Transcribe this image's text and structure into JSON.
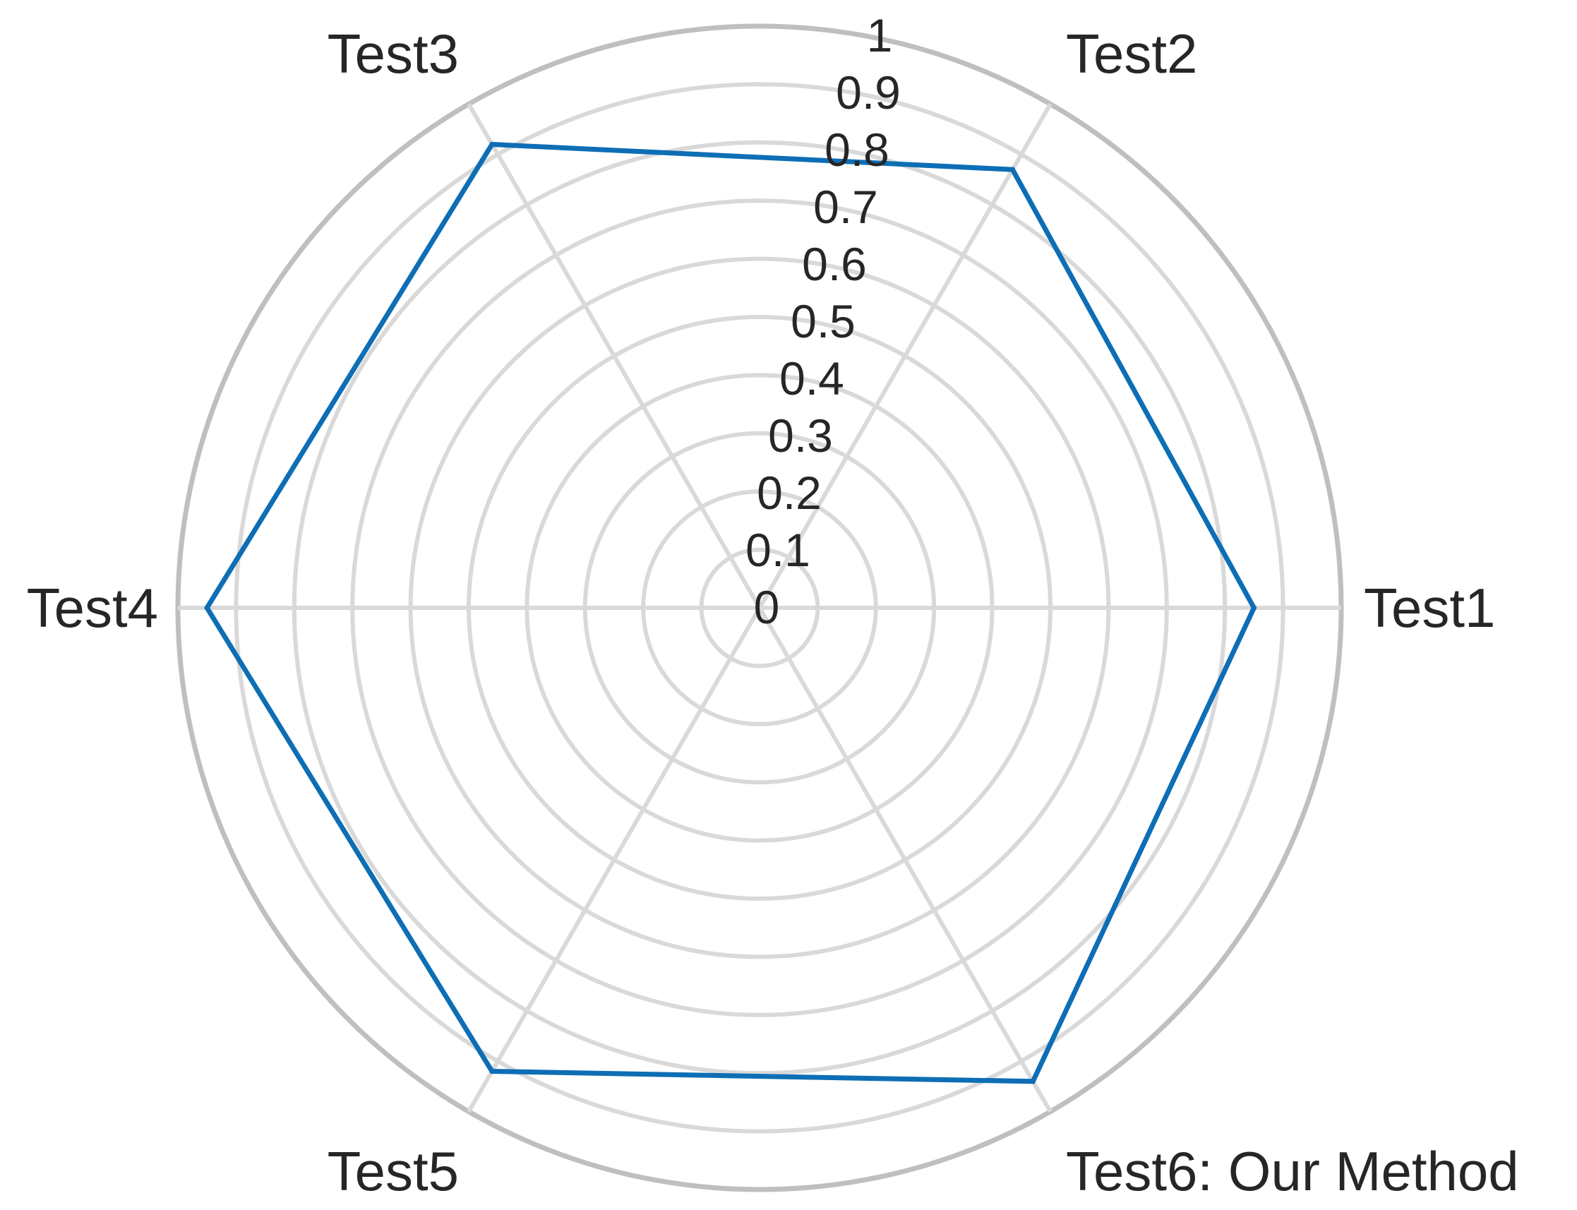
{
  "chart_data": {
    "type": "radar",
    "categories": [
      "Test1",
      "Test2",
      "Test3",
      "Test4",
      "Test5",
      "Test6: Our Method"
    ],
    "series": [
      {
        "values": [
          0.85,
          0.87,
          0.92,
          0.95,
          0.92,
          0.94
        ],
        "color": "#0d6eb5"
      }
    ],
    "radial_ticks": [
      "0",
      "0.1",
      "0.2",
      "0.3",
      "0.4",
      "0.5",
      "0.6",
      "0.7",
      "0.8",
      "0.9",
      "1"
    ],
    "rlim": [
      0,
      1
    ],
    "grid": true,
    "legend": "none"
  }
}
